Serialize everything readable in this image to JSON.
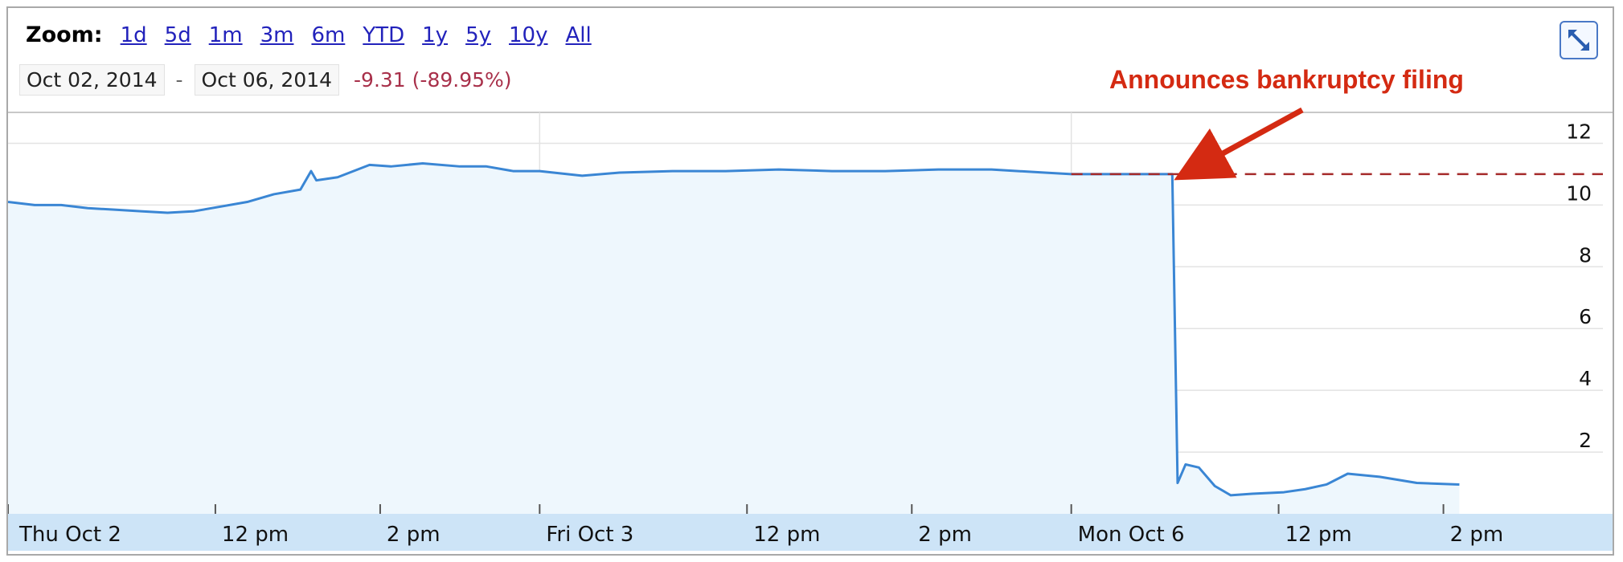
{
  "toolbar": {
    "zoom_label": "Zoom:",
    "zoom_options": [
      "1d",
      "5d",
      "1m",
      "3m",
      "6m",
      "YTD",
      "1y",
      "5y",
      "10y",
      "All"
    ],
    "start_date": "Oct 02, 2014",
    "separator": "-",
    "end_date": "Oct 06, 2014",
    "change": "-9.31 (-89.95%)",
    "expand_icon": "expand-arrows-icon"
  },
  "colors": {
    "line": "#3a86d4",
    "fill": "#eef7fd",
    "axis_band": "#cde4f7",
    "annotation": "#d42a12",
    "reference_line": "#a52a2a",
    "change_negative": "#a8304a"
  },
  "chart_data": {
    "type": "area",
    "title": "",
    "xlabel": "",
    "ylabel": "",
    "ylim": [
      0,
      13
    ],
    "y_ticks": [
      2,
      4,
      6,
      8,
      10,
      12
    ],
    "x_tick_labels": [
      "Thu Oct 2",
      "12 pm",
      "2 pm",
      "Fri Oct 3",
      "12 pm",
      "2 pm",
      "Mon Oct 6",
      "12 pm",
      "2 pm"
    ],
    "x_range": [
      0,
      3
    ],
    "grid": true,
    "series": [
      {
        "x": [
          0.0,
          0.05,
          0.1,
          0.15,
          0.2,
          0.25,
          0.3,
          0.35,
          0.4,
          0.45,
          0.5,
          0.55,
          0.57,
          0.58,
          0.62,
          0.68,
          0.72,
          0.78,
          0.85,
          0.9,
          0.95,
          1.0,
          1.08,
          1.15,
          1.25,
          1.35,
          1.45,
          1.55,
          1.65,
          1.75,
          1.85,
          1.95,
          2.0,
          2.05,
          2.1,
          2.19,
          2.2,
          2.215,
          2.24,
          2.27,
          2.3,
          2.34,
          2.4,
          2.44,
          2.48,
          2.52,
          2.58,
          2.65,
          2.73
        ],
        "y": [
          10.1,
          10.0,
          10.0,
          9.9,
          9.85,
          9.8,
          9.75,
          9.8,
          9.95,
          10.1,
          10.35,
          10.5,
          11.1,
          10.8,
          10.9,
          11.3,
          11.25,
          11.35,
          11.25,
          11.25,
          11.1,
          11.1,
          10.95,
          11.05,
          11.1,
          11.1,
          11.15,
          11.1,
          11.1,
          11.15,
          11.15,
          11.05,
          11.0,
          11.0,
          11.0,
          11.0,
          1.0,
          1.6,
          1.5,
          0.9,
          0.6,
          0.65,
          0.7,
          0.8,
          0.95,
          1.3,
          1.2,
          1.0,
          0.95
        ]
      }
    ],
    "reference_line": {
      "y": 11.0,
      "x_start": 2.0,
      "x_end": 3.0
    },
    "annotations": [
      {
        "text": "Announces bankruptcy filing",
        "x": 2.2,
        "y": 11.0
      }
    ]
  }
}
